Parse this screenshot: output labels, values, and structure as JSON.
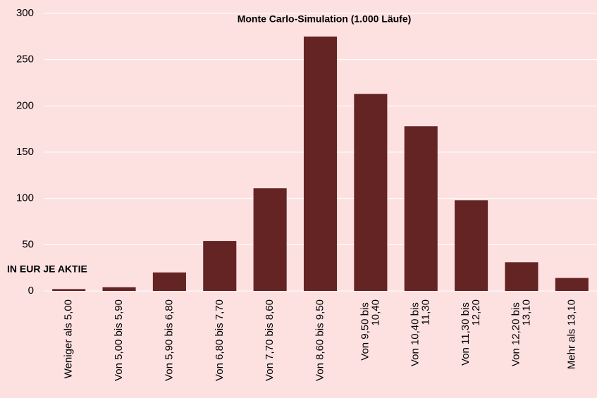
{
  "chart_data": {
    "type": "bar",
    "title": "Monte Carlo-Simulation  (1.000 Läufe)",
    "annotation": "IN EUR JE AKTIE",
    "categories": [
      "Weniger als 5,00",
      "Von 5,00 bis 5,90",
      "Von 5,90 bis 6,80",
      "Von 6,80 bis 7,70",
      "Von 7,70 bis 8,60",
      "Von 8,60 bis 9,50",
      "Von 9,50 bis 10,40",
      "Von 10,40 bis 11,30",
      "Von 11,30 bis 12,20",
      "Von 12,20 bis 13,10",
      "Mehr als 13,10"
    ],
    "values": [
      2,
      4,
      20,
      54,
      111,
      275,
      213,
      178,
      98,
      31,
      14
    ],
    "color": "#652424",
    "grid": true,
    "ylim": [
      0,
      300
    ],
    "yticks": [
      0,
      50,
      100,
      150,
      200,
      250,
      300
    ]
  }
}
